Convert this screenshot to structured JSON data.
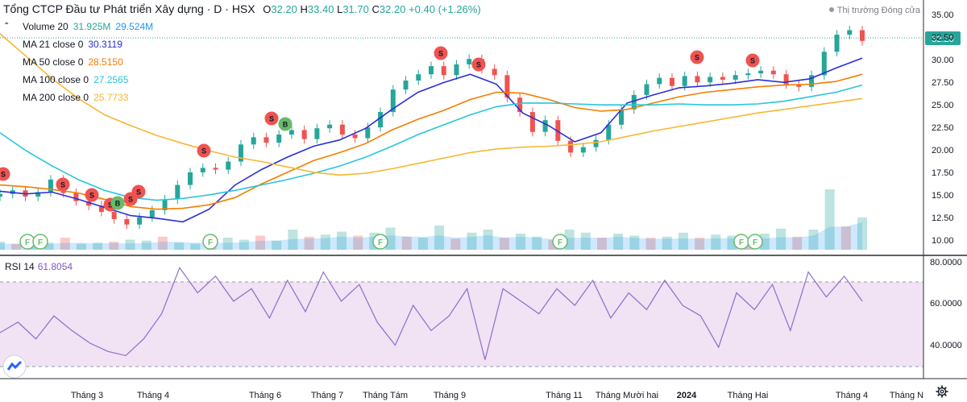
{
  "header": {
    "title": "Tổng CTCP Đầu tư Phát triển Xây dựng · D · HSX",
    "ohlc": [
      {
        "label": "O",
        "value": "32.20"
      },
      {
        "label": "H",
        "value": "33.40"
      },
      {
        "label": "L",
        "value": "31.70"
      },
      {
        "label": "C",
        "value": "32.20"
      }
    ],
    "change": "+0.40 (+1.26%)",
    "market_status": "Thị trường Đóng cửa",
    "up_color": "#26a69a",
    "down_color": "#ef5350"
  },
  "legend": {
    "volume": {
      "label": "Volume 20",
      "v1": "31.925M",
      "v2": "29.524M",
      "v1_color": "#26a69a",
      "v2_color": "#2196f3"
    },
    "ma": [
      {
        "label": "MA 21 close 0",
        "value": "30.3119",
        "color": "#2a2ed6"
      },
      {
        "label": "MA 50 close 0",
        "value": "28.5150",
        "color": "#f57c00"
      },
      {
        "label": "MA 100 close 0",
        "value": "27.2565",
        "color": "#26c6da"
      },
      {
        "label": "MA 200 close 0",
        "value": "25.7733",
        "color": "#f7b733"
      }
    ]
  },
  "price_axis": {
    "ticks": [
      "35.00",
      "32.50",
      "30.00",
      "27.50",
      "25.00",
      "22.50",
      "20.00",
      "17.50",
      "15.00",
      "12.50",
      "10.00"
    ],
    "last_price": "32.20",
    "last_price_color": "#26a69a"
  },
  "rsi": {
    "label": "RSI 14",
    "value": "61.8054",
    "ticks": [
      "80.0000",
      "60.0000",
      "40.0000"
    ],
    "line_color": "#7e57c2",
    "band_color": "#e1bee7"
  },
  "time_axis": {
    "labels": [
      "Tháng 3",
      "Tháng 4",
      "Tháng 6",
      "Tháng 7",
      "Tháng Tám",
      "Tháng 9",
      "Tháng 11",
      "Tháng Mười hai",
      "2024",
      "Tháng Hai",
      "Tháng 4",
      "Tháng N"
    ]
  },
  "markers": {
    "sell": "S",
    "buy": "B",
    "financial": "F",
    "sell_color": "#ef5350",
    "buy_color": "#66bb6a",
    "financial_color": "#66bb6a"
  },
  "chart_data": {
    "type": "line",
    "title": "Tổng CTCP Đầu tư Phát triển Xây dựng · D · HSX",
    "ylim": [
      9,
      35.5
    ],
    "series": [
      {
        "name": "MA 21 close 0",
        "values": [
          15.5,
          15.2,
          15.4,
          14.6,
          13.7,
          12.8,
          12.5,
          12.1,
          13.5,
          16.2,
          17.9,
          19.3,
          20.5,
          21.2,
          22.5,
          24.6,
          26.5,
          27.6,
          28.5,
          27.4,
          24.2,
          22.8,
          21.0,
          22.0,
          25.3,
          26.2,
          27.0,
          27.2,
          27.5,
          27.9,
          27.6,
          28.0,
          29.2,
          30.3
        ]
      },
      {
        "name": "MA 50 close 0",
        "values": [
          16.2,
          16.0,
          15.7,
          15.3,
          14.6,
          13.8,
          13.5,
          13.6,
          14.0,
          14.8,
          16.3,
          17.6,
          18.9,
          19.8,
          20.8,
          22.3,
          23.5,
          24.5,
          25.7,
          26.5,
          26.4,
          25.7,
          24.8,
          24.4,
          24.6,
          25.3,
          26.0,
          26.5,
          26.8,
          27.1,
          27.3,
          27.4,
          27.7,
          28.5
        ]
      },
      {
        "name": "MA 100 close 0",
        "values": [
          22.0,
          20.0,
          18.3,
          16.8,
          15.6,
          14.8,
          14.5,
          14.7,
          15.1,
          15.6,
          16.2,
          16.8,
          17.5,
          18.3,
          19.3,
          20.5,
          21.8,
          22.9,
          24.0,
          24.9,
          25.3,
          25.3,
          25.2,
          25.1,
          25.1,
          25.1,
          25.2,
          25.1,
          25.1,
          25.2,
          25.5,
          26.0,
          26.5,
          27.3
        ]
      },
      {
        "name": "MA 200 close 0",
        "values": [
          33.0,
          30.5,
          28.0,
          25.8,
          24.0,
          22.8,
          21.7,
          20.8,
          20.0,
          19.3,
          18.8,
          18.2,
          17.6,
          17.3,
          17.5,
          18.0,
          18.6,
          19.2,
          19.8,
          20.2,
          20.4,
          20.5,
          20.7,
          21.0,
          21.6,
          22.2,
          22.7,
          23.2,
          23.7,
          24.2,
          24.6,
          25.0,
          25.4,
          25.8
        ]
      },
      {
        "name": "RSI 14",
        "values": [
          47,
          52,
          44,
          55,
          48,
          42,
          38,
          36,
          44,
          56,
          78,
          66,
          74,
          62,
          68,
          54,
          72,
          57,
          76,
          62,
          70,
          52,
          41,
          60,
          48,
          55,
          68,
          34,
          68,
          62,
          56,
          68,
          60,
          72,
          54,
          66,
          58,
          72,
          60,
          55,
          40,
          66,
          58,
          70,
          48,
          76,
          64,
          74,
          62
        ]
      }
    ],
    "candles_close": [
      15.2,
      15.6,
      14.9,
      15.4,
      16.8,
      15.3,
      14.4,
      13.9,
      13.2,
      12.4,
      11.8,
      12.6,
      13.4,
      14.6,
      16.2,
      17.6,
      18.1,
      17.9,
      18.8,
      20.7,
      21.5,
      20.9,
      21.8,
      22.3,
      21.3,
      22.5,
      22.9,
      21.8,
      21.4,
      22.6,
      24.3,
      26.8,
      27.8,
      28.5,
      29.4,
      28.4,
      29.6,
      30.2,
      29.1,
      28.4,
      25.9,
      24.3,
      22.1,
      23.4,
      21.1,
      19.8,
      20.4,
      21.2,
      22.9,
      24.6,
      26.2,
      27.4,
      28.1,
      27.2,
      28.3,
      27.6,
      28.2,
      27.9,
      28.4,
      28.6,
      28.9,
      28.5,
      27.4,
      27.1,
      28.4,
      31.0,
      32.9,
      33.4,
      32.2
    ],
    "volume_values_mil": [
      8,
      6,
      9,
      7,
      12,
      6,
      7,
      8,
      10,
      9,
      13,
      7,
      6,
      9,
      12,
      10,
      14,
      9,
      20,
      13,
      15,
      18,
      14,
      17,
      22,
      13,
      12,
      24,
      11,
      17,
      20,
      12,
      16,
      13,
      10,
      20,
      17,
      12,
      16,
      14,
      12,
      13,
      17,
      12,
      15,
      14,
      11,
      16,
      21,
      13,
      20,
      60,
      23,
      31.925
    ],
    "rsi_ylim": [
      25,
      82
    ],
    "rsi_bands": [
      30,
      70
    ]
  }
}
